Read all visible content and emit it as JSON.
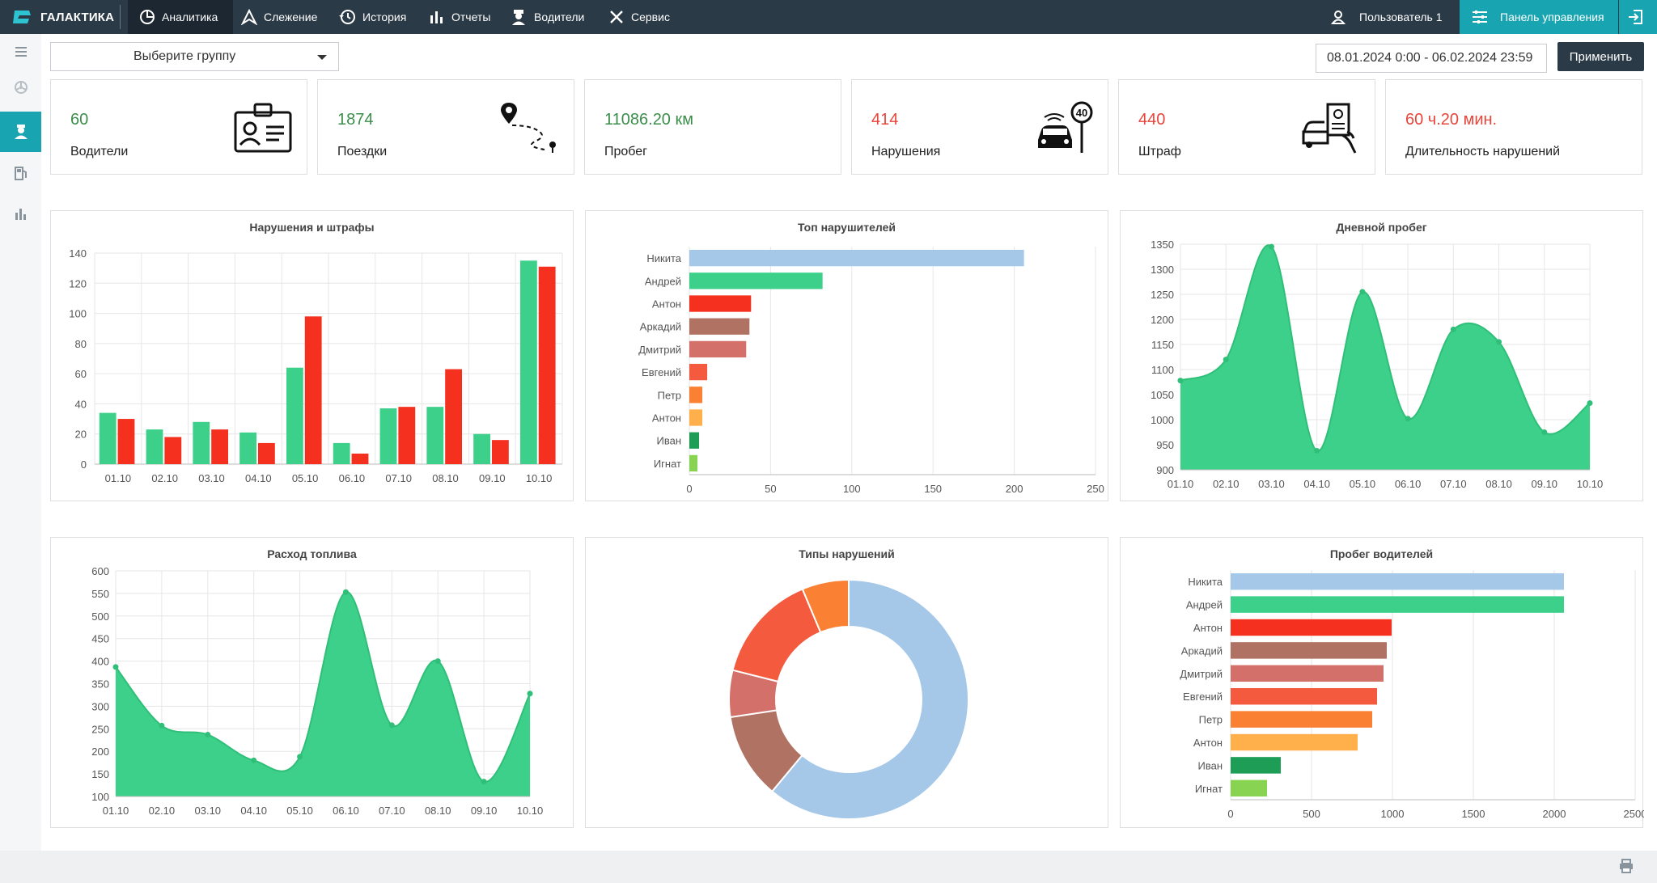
{
  "topbar": {
    "brand": "ГАЛАКТИКА",
    "nav": [
      "Аналитика",
      "Слежение",
      "История",
      "Отчеты",
      "Водители",
      "Сервис"
    ],
    "user": "Пользователь 1",
    "panel": "Панель управления",
    "icons": [
      "logo-icon",
      "analytics-icon",
      "tracking-icon",
      "history-icon",
      "reports-icon",
      "drivers-icon",
      "service-icon",
      "user-icon",
      "panel-icon",
      "exit-icon"
    ]
  },
  "filters": {
    "group_placeholder": "Выберите группу",
    "date_range": "08.01.2024 0:00 - 06.02.2024 23:59",
    "apply": "Применить"
  },
  "cards": [
    {
      "value": "60",
      "label": "Водители",
      "color": "#3a8e4a",
      "icon": "driver-id-icon"
    },
    {
      "value": "1874",
      "label": "Поездки",
      "color": "#3a8e4a",
      "icon": "route-icon"
    },
    {
      "value": "11086.20 км",
      "label": "Пробег",
      "color": "#3a8e4a",
      "icon": ""
    },
    {
      "value": "414",
      "label": "Нарушения",
      "color": "#e8443a",
      "icon": "speed-violation-icon"
    },
    {
      "value": "440",
      "label": "Штраф",
      "color": "#e8443a",
      "icon": "fine-icon"
    },
    {
      "value": "60 ч.20 мин.",
      "label": "Длительность нарушений",
      "color": "#e8443a",
      "icon": ""
    }
  ],
  "chart_data": [
    {
      "type": "bar",
      "title": "Нарушения и штрафы",
      "categories": [
        "01.10",
        "02.10",
        "03.10",
        "04.10",
        "05.10",
        "06.10",
        "07.10",
        "08.10",
        "09.10",
        "10.10"
      ],
      "series": [
        {
          "values": [
            34,
            23,
            28,
            21,
            64,
            14,
            37,
            38,
            20,
            135
          ],
          "color": "#3dd08a"
        },
        {
          "values": [
            30,
            18,
            23,
            14,
            98,
            7,
            38,
            63,
            16,
            131
          ],
          "color": "#f5301e"
        }
      ],
      "ylim": [
        0,
        140
      ],
      "yticks": [
        0,
        20,
        40,
        60,
        80,
        100,
        120,
        140
      ]
    },
    {
      "type": "bar",
      "orientation": "horizontal",
      "title": "Топ нарушителей",
      "categories": [
        "Никита",
        "Андрей",
        "Антон",
        "Аркадий",
        "Дмитрий",
        "Евгений",
        "Петр",
        "Антон",
        "Иван",
        "Игнат"
      ],
      "values": [
        206,
        82,
        38,
        37,
        35,
        11,
        8,
        8,
        6,
        5
      ],
      "colors": [
        "#a5c8e8",
        "#3dd08a",
        "#f5301e",
        "#b07262",
        "#d4706a",
        "#f45a3e",
        "#fa8034",
        "#ffb04a",
        "#1e9d57",
        "#88d352"
      ],
      "xlim": [
        0,
        250
      ],
      "xticks": [
        0,
        50,
        100,
        150,
        200,
        250
      ]
    },
    {
      "type": "area",
      "title": "Дневной пробег",
      "x": [
        "01.10",
        "02.10",
        "03.10",
        "04.10",
        "05.10",
        "06.10",
        "07.10",
        "08.10",
        "09.10",
        "10.10"
      ],
      "values": [
        1078,
        1120,
        1345,
        938,
        1255,
        1002,
        1180,
        1155,
        975,
        1033
      ],
      "ylim": [
        900,
        1350
      ],
      "yticks": [
        900,
        950,
        1000,
        1050,
        1100,
        1150,
        1200,
        1250,
        1300,
        1350
      ],
      "color": "#3dd08a"
    },
    {
      "type": "area",
      "title": "Расход топлива",
      "x": [
        "01.10",
        "02.10",
        "03.10",
        "04.10",
        "05.10",
        "06.10",
        "07.10",
        "08.10",
        "09.10",
        "10.10"
      ],
      "values": [
        387,
        257,
        237,
        180,
        188,
        553,
        258,
        400,
        133,
        328
      ],
      "ylim": [
        100,
        600
      ],
      "yticks": [
        100,
        150,
        200,
        250,
        300,
        350,
        400,
        450,
        500,
        550,
        600
      ],
      "color": "#3dd08a"
    },
    {
      "type": "pie",
      "title": "Типы нарушений",
      "values": [
        58,
        11,
        6,
        14,
        6
      ],
      "colors": [
        "#a5c8e8",
        "#b07262",
        "#d4706a",
        "#f45a3e",
        "#fa8034"
      ]
    },
    {
      "type": "bar",
      "orientation": "horizontal",
      "title": "Пробег водителей",
      "categories": [
        "Никита",
        "Андрей",
        "Антон",
        "Аркадий",
        "Дмитрий",
        "Евгений",
        "Петр",
        "Антон",
        "Иван",
        "Игнат"
      ],
      "values": [
        2060,
        2060,
        995,
        965,
        945,
        905,
        875,
        785,
        310,
        225
      ],
      "colors": [
        "#a5c8e8",
        "#3dd08a",
        "#f5301e",
        "#b07262",
        "#d4706a",
        "#f45a3e",
        "#fa8034",
        "#ffb04a",
        "#1e9d57",
        "#88d352"
      ],
      "xlim": [
        0,
        2500
      ],
      "xticks": [
        0,
        500,
        1000,
        1500,
        2000,
        2500
      ]
    }
  ]
}
